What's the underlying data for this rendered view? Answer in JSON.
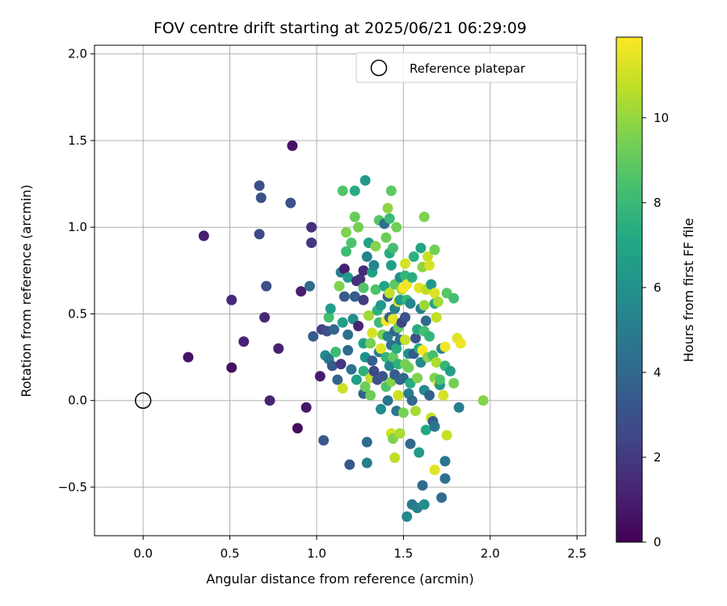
{
  "chart_data": {
    "type": "scatter",
    "title": "FOV centre drift starting at 2025/06/21 06:29:09",
    "xlabel": "Angular distance from reference (arcmin)",
    "ylabel": "Rotation from reference (arcmin)",
    "xlim": [
      -0.28,
      2.55
    ],
    "ylim": [
      -0.78,
      2.05
    ],
    "xticks": [
      0.0,
      0.5,
      1.0,
      1.5,
      2.0,
      2.5
    ],
    "xtick_labels": [
      "0.0",
      "0.5",
      "1.0",
      "1.5",
      "2.0",
      "2.5"
    ],
    "yticks": [
      -0.5,
      0.0,
      0.5,
      1.0,
      1.5,
      2.0
    ],
    "ytick_labels": [
      "−0.5",
      "0.0",
      "0.5",
      "1.0",
      "1.5",
      "2.0"
    ],
    "grid": true,
    "legend": {
      "position": "top-right",
      "entries": [
        "Reference platepar"
      ]
    },
    "reference_point": {
      "x": 0.0,
      "y": 0.0
    },
    "colorbar": {
      "label": "Hours from first FF file",
      "colormap": "viridis",
      "range": [
        0,
        11.9
      ],
      "ticks": [
        0,
        2,
        4,
        6,
        8,
        10
      ],
      "tick_labels": [
        "0",
        "2",
        "4",
        "6",
        "8",
        "10"
      ]
    },
    "points": [
      {
        "x": 0.26,
        "y": 0.25,
        "c": 0.6
      },
      {
        "x": 0.35,
        "y": 0.95,
        "c": 1.0
      },
      {
        "x": 0.51,
        "y": 0.19,
        "c": 0.5
      },
      {
        "x": 0.51,
        "y": 0.58,
        "c": 1.4
      },
      {
        "x": 0.58,
        "y": 0.34,
        "c": 1.2
      },
      {
        "x": 0.67,
        "y": 0.96,
        "c": 2.6
      },
      {
        "x": 0.67,
        "y": 1.24,
        "c": 2.9
      },
      {
        "x": 0.68,
        "y": 1.17,
        "c": 3.0
      },
      {
        "x": 0.7,
        "y": 0.48,
        "c": 1.3
      },
      {
        "x": 0.71,
        "y": 0.66,
        "c": 2.8
      },
      {
        "x": 0.73,
        "y": 0.0,
        "c": 1.2
      },
      {
        "x": 0.78,
        "y": 0.3,
        "c": 1.1
      },
      {
        "x": 0.85,
        "y": 1.14,
        "c": 3.0
      },
      {
        "x": 0.86,
        "y": 1.47,
        "c": 0.6
      },
      {
        "x": 0.89,
        "y": -0.16,
        "c": 0.4
      },
      {
        "x": 0.91,
        "y": 0.63,
        "c": 1.0
      },
      {
        "x": 0.94,
        "y": -0.04,
        "c": 0.7
      },
      {
        "x": 0.96,
        "y": 0.66,
        "c": 4.2
      },
      {
        "x": 0.97,
        "y": 1.0,
        "c": 1.6
      },
      {
        "x": 0.97,
        "y": 0.91,
        "c": 1.9
      },
      {
        "x": 0.98,
        "y": 0.37,
        "c": 3.5
      },
      {
        "x": 1.02,
        "y": 0.14,
        "c": 0.9
      },
      {
        "x": 1.03,
        "y": 0.41,
        "c": 2.3
      },
      {
        "x": 1.04,
        "y": -0.23,
        "c": 3.2
      },
      {
        "x": 1.05,
        "y": 0.26,
        "c": 5.7
      },
      {
        "x": 1.06,
        "y": 0.4,
        "c": 2.9
      },
      {
        "x": 1.07,
        "y": 0.24,
        "c": 4.7
      },
      {
        "x": 1.07,
        "y": 0.48,
        "c": 8.3
      },
      {
        "x": 1.08,
        "y": 0.53,
        "c": 6.6
      },
      {
        "x": 1.09,
        "y": 0.2,
        "c": 3.4
      },
      {
        "x": 1.1,
        "y": 0.41,
        "c": 3.9
      },
      {
        "x": 1.11,
        "y": 0.28,
        "c": 8.1
      },
      {
        "x": 1.12,
        "y": 0.12,
        "c": 3.9
      },
      {
        "x": 1.13,
        "y": 0.66,
        "c": 9.6
      },
      {
        "x": 1.14,
        "y": 0.74,
        "c": 5.0
      },
      {
        "x": 1.14,
        "y": 0.21,
        "c": 1.9
      },
      {
        "x": 1.15,
        "y": 1.21,
        "c": 8.6
      },
      {
        "x": 1.15,
        "y": 0.45,
        "c": 6.5
      },
      {
        "x": 1.15,
        "y": 0.07,
        "c": 11.0
      },
      {
        "x": 1.16,
        "y": 0.76,
        "c": 1.0
      },
      {
        "x": 1.16,
        "y": 0.6,
        "c": 3.4
      },
      {
        "x": 1.17,
        "y": 0.97,
        "c": 9.6
      },
      {
        "x": 1.17,
        "y": 0.86,
        "c": 8.2
      },
      {
        "x": 1.18,
        "y": 0.38,
        "c": 4.4
      },
      {
        "x": 1.18,
        "y": 0.29,
        "c": 4.1
      },
      {
        "x": 1.18,
        "y": 0.71,
        "c": 6.5
      },
      {
        "x": 1.19,
        "y": -0.37,
        "c": 3.3
      },
      {
        "x": 1.2,
        "y": 0.18,
        "c": 4.5
      },
      {
        "x": 1.2,
        "y": 0.91,
        "c": 8.5
      },
      {
        "x": 1.21,
        "y": 0.47,
        "c": 5.9
      },
      {
        "x": 1.22,
        "y": 1.21,
        "c": 7.3
      },
      {
        "x": 1.22,
        "y": 1.06,
        "c": 9.1
      },
      {
        "x": 1.22,
        "y": 0.6,
        "c": 3.5
      },
      {
        "x": 1.23,
        "y": 0.69,
        "c": 1.6
      },
      {
        "x": 1.23,
        "y": 0.12,
        "c": 6.7
      },
      {
        "x": 1.24,
        "y": 0.43,
        "c": 1.2
      },
      {
        "x": 1.24,
        "y": 1.0,
        "c": 9.4
      },
      {
        "x": 1.25,
        "y": 0.7,
        "c": 1.8
      },
      {
        "x": 1.27,
        "y": 0.58,
        "c": 2.1
      },
      {
        "x": 1.27,
        "y": 0.33,
        "c": 6.8
      },
      {
        "x": 1.27,
        "y": 0.17,
        "c": 7.6
      },
      {
        "x": 1.27,
        "y": 0.04,
        "c": 3.6
      },
      {
        "x": 1.27,
        "y": 0.65,
        "c": 8.6
      },
      {
        "x": 1.27,
        "y": 0.75,
        "c": 1.4
      },
      {
        "x": 1.28,
        "y": 1.27,
        "c": 6.3
      },
      {
        "x": 1.28,
        "y": 0.25,
        "c": 5.9
      },
      {
        "x": 1.28,
        "y": 0.08,
        "c": 9.2
      },
      {
        "x": 1.29,
        "y": 0.83,
        "c": 5.3
      },
      {
        "x": 1.29,
        "y": -0.24,
        "c": 4.2
      },
      {
        "x": 1.29,
        "y": -0.36,
        "c": 5.1
      },
      {
        "x": 1.3,
        "y": 0.91,
        "c": 6.8
      },
      {
        "x": 1.3,
        "y": 0.49,
        "c": 10.2
      },
      {
        "x": 1.31,
        "y": 0.33,
        "c": 9.4
      },
      {
        "x": 1.31,
        "y": 0.13,
        "c": 10.8
      },
      {
        "x": 1.31,
        "y": 0.03,
        "c": 9.2
      },
      {
        "x": 1.32,
        "y": 0.74,
        "c": 6.8
      },
      {
        "x": 1.32,
        "y": 0.39,
        "c": 11.2
      },
      {
        "x": 1.32,
        "y": 0.23,
        "c": 3.6
      },
      {
        "x": 1.33,
        "y": 0.17,
        "c": 2.6
      },
      {
        "x": 1.33,
        "y": 0.78,
        "c": 5.4
      },
      {
        "x": 1.34,
        "y": 0.64,
        "c": 8.5
      },
      {
        "x": 1.34,
        "y": 0.89,
        "c": 9.7
      },
      {
        "x": 1.35,
        "y": 0.52,
        "c": 7.6
      },
      {
        "x": 1.35,
        "y": 0.12,
        "c": 3.0
      },
      {
        "x": 1.36,
        "y": 1.04,
        "c": 8.7
      },
      {
        "x": 1.36,
        "y": 0.45,
        "c": 8.1
      },
      {
        "x": 1.36,
        "y": 0.28,
        "c": 4.8
      },
      {
        "x": 1.37,
        "y": -0.05,
        "c": 5.7
      },
      {
        "x": 1.37,
        "y": 0.55,
        "c": 6.3
      },
      {
        "x": 1.37,
        "y": 0.3,
        "c": 11.4
      },
      {
        "x": 1.38,
        "y": 0.14,
        "c": 3.1
      },
      {
        "x": 1.38,
        "y": 0.38,
        "c": 9.5
      },
      {
        "x": 1.39,
        "y": 1.02,
        "c": 4.3
      },
      {
        "x": 1.39,
        "y": 0.66,
        "c": 7.0
      },
      {
        "x": 1.4,
        "y": 0.46,
        "c": 11.8
      },
      {
        "x": 1.4,
        "y": 0.25,
        "c": 7.8
      },
      {
        "x": 1.4,
        "y": 0.08,
        "c": 8.5
      },
      {
        "x": 1.4,
        "y": 0.94,
        "c": 9.2
      },
      {
        "x": 1.41,
        "y": 1.11,
        "c": 9.9
      },
      {
        "x": 1.41,
        "y": 0.6,
        "c": 3.7
      },
      {
        "x": 1.41,
        "y": 0.37,
        "c": 5.3
      },
      {
        "x": 1.41,
        "y": 0.0,
        "c": 4.5
      },
      {
        "x": 1.42,
        "y": 1.05,
        "c": 8.0
      },
      {
        "x": 1.42,
        "y": 0.85,
        "c": 7.3
      },
      {
        "x": 1.42,
        "y": 0.48,
        "c": 3.6
      },
      {
        "x": 1.42,
        "y": 0.2,
        "c": 5.4
      },
      {
        "x": 1.42,
        "y": 0.62,
        "c": 10.8
      },
      {
        "x": 1.43,
        "y": 0.78,
        "c": 6.7
      },
      {
        "x": 1.43,
        "y": 0.32,
        "c": 4.5
      },
      {
        "x": 1.43,
        "y": 0.11,
        "c": 9.7
      },
      {
        "x": 1.43,
        "y": 1.21,
        "c": 8.9
      },
      {
        "x": 1.43,
        "y": -0.19,
        "c": 11.1
      },
      {
        "x": 1.44,
        "y": 0.47,
        "c": 11.4
      },
      {
        "x": 1.44,
        "y": 0.88,
        "c": 8.3
      },
      {
        "x": 1.44,
        "y": 0.25,
        "c": 9.0
      },
      {
        "x": 1.44,
        "y": -0.22,
        "c": 9.6
      },
      {
        "x": 1.45,
        "y": 0.4,
        "c": 3.8
      },
      {
        "x": 1.45,
        "y": 0.67,
        "c": 8.9
      },
      {
        "x": 1.45,
        "y": 0.53,
        "c": 5.1
      },
      {
        "x": 1.45,
        "y": 0.15,
        "c": 3.4
      },
      {
        "x": 1.45,
        "y": -0.33,
        "c": 10.7
      },
      {
        "x": 1.46,
        "y": 1.0,
        "c": 9.3
      },
      {
        "x": 1.46,
        "y": 0.3,
        "c": 7.3
      },
      {
        "x": 1.46,
        "y": -0.06,
        "c": 4.6
      },
      {
        "x": 1.47,
        "y": 0.42,
        "c": 9.1
      },
      {
        "x": 1.47,
        "y": 0.21,
        "c": 7.6
      },
      {
        "x": 1.47,
        "y": 0.57,
        "c": 11.2
      },
      {
        "x": 1.47,
        "y": 0.03,
        "c": 11.0
      },
      {
        "x": 1.48,
        "y": 0.71,
        "c": 5.7
      },
      {
        "x": 1.48,
        "y": 0.58,
        "c": 6.4
      },
      {
        "x": 1.48,
        "y": 0.12,
        "c": 3.7
      },
      {
        "x": 1.48,
        "y": 0.35,
        "c": 4.4
      },
      {
        "x": 1.48,
        "y": -0.19,
        "c": 10.4
      },
      {
        "x": 1.49,
        "y": 0.64,
        "c": 10.3
      },
      {
        "x": 1.49,
        "y": 0.45,
        "c": 2.4
      },
      {
        "x": 1.5,
        "y": 0.13,
        "c": 4.0
      },
      {
        "x": 1.5,
        "y": 0.65,
        "c": 11.8
      },
      {
        "x": 1.5,
        "y": -0.07,
        "c": 9.5
      },
      {
        "x": 1.51,
        "y": 0.79,
        "c": 11.1
      },
      {
        "x": 1.51,
        "y": 0.72,
        "c": 7.8
      },
      {
        "x": 1.51,
        "y": 0.48,
        "c": 3.1
      },
      {
        "x": 1.51,
        "y": 0.35,
        "c": 10.9
      },
      {
        "x": 1.51,
        "y": 0.21,
        "c": 9.4
      },
      {
        "x": 1.52,
        "y": 0.67,
        "c": 11.6
      },
      {
        "x": 1.52,
        "y": 0.58,
        "c": 7.9
      },
      {
        "x": 1.52,
        "y": -0.67,
        "c": 5.6
      },
      {
        "x": 1.53,
        "y": 0.19,
        "c": 9.3
      },
      {
        "x": 1.53,
        "y": 0.04,
        "c": 4.9
      },
      {
        "x": 1.53,
        "y": 0.27,
        "c": 5.8
      },
      {
        "x": 1.54,
        "y": 0.56,
        "c": 5.4
      },
      {
        "x": 1.54,
        "y": -0.25,
        "c": 4.1
      },
      {
        "x": 1.54,
        "y": 0.1,
        "c": 7.3
      },
      {
        "x": 1.55,
        "y": -0.6,
        "c": 4.7
      },
      {
        "x": 1.55,
        "y": 0.71,
        "c": 7.4
      },
      {
        "x": 1.55,
        "y": 0.0,
        "c": 4.0
      },
      {
        "x": 1.56,
        "y": 0.83,
        "c": 7.6
      },
      {
        "x": 1.56,
        "y": 0.27,
        "c": 3.3
      },
      {
        "x": 1.57,
        "y": 0.36,
        "c": 3.0
      },
      {
        "x": 1.57,
        "y": -0.06,
        "c": 10.3
      },
      {
        "x": 1.58,
        "y": -0.62,
        "c": 5.2
      },
      {
        "x": 1.58,
        "y": 0.41,
        "c": 7.3
      },
      {
        "x": 1.58,
        "y": 0.13,
        "c": 9.6
      },
      {
        "x": 1.59,
        "y": 0.65,
        "c": 11.4
      },
      {
        "x": 1.59,
        "y": 0.3,
        "c": 7.1
      },
      {
        "x": 1.59,
        "y": -0.3,
        "c": 6.4
      },
      {
        "x": 1.6,
        "y": 0.88,
        "c": 7.0
      },
      {
        "x": 1.6,
        "y": 0.53,
        "c": 5.1
      },
      {
        "x": 1.6,
        "y": 0.22,
        "c": 5.6
      },
      {
        "x": 1.61,
        "y": 0.77,
        "c": 9.9
      },
      {
        "x": 1.61,
        "y": 0.29,
        "c": 11.8
      },
      {
        "x": 1.61,
        "y": -0.49,
        "c": 4.2
      },
      {
        "x": 1.62,
        "y": 0.55,
        "c": 10.1
      },
      {
        "x": 1.62,
        "y": 0.4,
        "c": 8.3
      },
      {
        "x": 1.62,
        "y": 0.06,
        "c": 5.6
      },
      {
        "x": 1.62,
        "y": -0.6,
        "c": 5.8
      },
      {
        "x": 1.62,
        "y": 1.06,
        "c": 9.6
      },
      {
        "x": 1.63,
        "y": 0.46,
        "c": 4.1
      },
      {
        "x": 1.63,
        "y": -0.17,
        "c": 7.1
      },
      {
        "x": 1.63,
        "y": 0.64,
        "c": 10.7
      },
      {
        "x": 1.64,
        "y": 0.83,
        "c": 10.9
      },
      {
        "x": 1.64,
        "y": 0.25,
        "c": 9.8
      },
      {
        "x": 1.65,
        "y": 0.78,
        "c": 11.2
      },
      {
        "x": 1.65,
        "y": 0.37,
        "c": 7.8
      },
      {
        "x": 1.65,
        "y": 0.03,
        "c": 3.7
      },
      {
        "x": 1.66,
        "y": 0.67,
        "c": 6.3
      },
      {
        "x": 1.66,
        "y": -0.1,
        "c": 10.9
      },
      {
        "x": 1.67,
        "y": 0.26,
        "c": 8.4
      },
      {
        "x": 1.67,
        "y": -0.12,
        "c": 3.5
      },
      {
        "x": 1.68,
        "y": 0.87,
        "c": 9.3
      },
      {
        "x": 1.68,
        "y": 0.62,
        "c": 11.3
      },
      {
        "x": 1.68,
        "y": 0.13,
        "c": 9.6
      },
      {
        "x": 1.68,
        "y": 0.56,
        "c": 7.0
      },
      {
        "x": 1.68,
        "y": -0.15,
        "c": 4.6
      },
      {
        "x": 1.68,
        "y": -0.4,
        "c": 11.4
      },
      {
        "x": 1.69,
        "y": 0.48,
        "c": 10.8
      },
      {
        "x": 1.69,
        "y": 0.22,
        "c": 10.4
      },
      {
        "x": 1.7,
        "y": 0.57,
        "c": 10.3
      },
      {
        "x": 1.7,
        "y": 0.1,
        "c": 11.7
      },
      {
        "x": 1.71,
        "y": 0.09,
        "c": 6.3
      },
      {
        "x": 1.71,
        "y": 0.12,
        "c": 8.5
      },
      {
        "x": 1.72,
        "y": -0.56,
        "c": 4.2
      },
      {
        "x": 1.72,
        "y": 0.3,
        "c": 5.2
      },
      {
        "x": 1.73,
        "y": 0.03,
        "c": 11.1
      },
      {
        "x": 1.74,
        "y": 0.31,
        "c": 11.7
      },
      {
        "x": 1.74,
        "y": 0.2,
        "c": 7.8
      },
      {
        "x": 1.74,
        "y": -0.35,
        "c": 4.6
      },
      {
        "x": 1.74,
        "y": -0.45,
        "c": 4.4
      },
      {
        "x": 1.75,
        "y": -0.2,
        "c": 10.9
      },
      {
        "x": 1.75,
        "y": 0.62,
        "c": 8.7
      },
      {
        "x": 1.77,
        "y": 0.17,
        "c": 6.6
      },
      {
        "x": 1.79,
        "y": 0.59,
        "c": 8.3
      },
      {
        "x": 1.79,
        "y": 0.1,
        "c": 9.4
      },
      {
        "x": 1.81,
        "y": 0.36,
        "c": 11.3
      },
      {
        "x": 1.82,
        "y": -0.04,
        "c": 5.0
      },
      {
        "x": 1.83,
        "y": 0.33,
        "c": 11.6
      },
      {
        "x": 1.96,
        "y": 0.0,
        "c": 9.7
      }
    ]
  }
}
